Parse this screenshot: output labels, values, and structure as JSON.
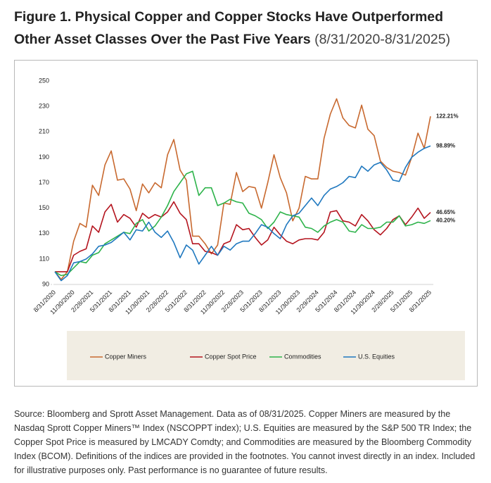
{
  "chart_data": {
    "type": "line",
    "title": "Figure 1. Physical Copper and Copper Stocks Have Outperformed Other Asset Classes Over the Past Five Years",
    "subtitle": "(8/31/2020-8/31/2025)",
    "footnote": "Source: Bloomberg and Sprott Asset Management. Data as of 08/31/2025. Copper Miners are measured by the Nasdaq Sprott Copper Miners™ Index (NSCOPPT index); U.S. Equities are measured by the S&P 500 TR Index; the Copper Spot Price is measured by LMCADY Comdty; and Commodities are measured by the Bloomberg Commodity Index (BCOM). Definitions of the indices are provided in the footnotes. You cannot invest directly in an index. Included for illustrative purposes only. Past performance is no guarantee of future results.",
    "categories": [
      "8/31/2020",
      null,
      null,
      "11/30/2020",
      null,
      null,
      "2/28/2021",
      null,
      null,
      "5/31/2021",
      null,
      null,
      "8/31/2021",
      null,
      null,
      "11/30/2021",
      null,
      null,
      "2/28/2022",
      null,
      null,
      "5/31/2022",
      null,
      null,
      "8/31/2022",
      null,
      null,
      "11/30/2022",
      null,
      null,
      "2/28/2023",
      null,
      null,
      "5/31/2023",
      null,
      null,
      "8/31/2023",
      null,
      null,
      "11/30/2023",
      null,
      null,
      "2/29/2024",
      null,
      null,
      "5/31/2024",
      null,
      null,
      "8/31/2024",
      null,
      null,
      "11/30/2024",
      null,
      null,
      "2/28/2025",
      null,
      null,
      "5/31/2025",
      null,
      null,
      "8/31/2025"
    ],
    "series": [
      {
        "name": "Copper Miners",
        "color": "#c8692f",
        "end_label": "122.21%",
        "values": [
          100,
          94,
          100,
          124,
          138,
          135,
          168,
          160,
          184,
          195,
          172,
          173,
          165,
          148,
          169,
          162,
          170,
          166,
          192,
          204,
          180,
          172,
          128,
          128,
          122,
          114,
          121,
          154,
          153,
          178,
          163,
          167,
          166,
          150,
          170,
          192,
          174,
          162,
          140,
          150,
          175,
          173,
          173,
          205,
          224,
          236,
          221,
          215,
          213,
          231,
          212,
          207,
          187,
          182,
          179,
          178,
          176,
          190,
          209,
          197,
          222.21
        ]
      },
      {
        "name": "Copper Spot Price",
        "color": "#b4141e",
        "end_label": "46.65%",
        "values": [
          100,
          100,
          100,
          113,
          116,
          118,
          136,
          131,
          147,
          153,
          139,
          145,
          142,
          135,
          146,
          142,
          145,
          143,
          147,
          155,
          146,
          141,
          122,
          122,
          116,
          115,
          113,
          122,
          124,
          137,
          133,
          134,
          127,
          121,
          125,
          135,
          129,
          124,
          122,
          125,
          126,
          126,
          125,
          131,
          147,
          148,
          140,
          139,
          136,
          145,
          140,
          133,
          129,
          134,
          141,
          144,
          137,
          143,
          150,
          142,
          146.65
        ]
      },
      {
        "name": "Commodities",
        "color": "#2db34a",
        "end_label": "40.20%",
        "values": [
          100,
          97,
          98,
          103,
          108,
          107,
          113,
          115,
          122,
          125,
          128,
          131,
          130,
          138,
          141,
          132,
          136,
          143,
          152,
          163,
          170,
          177,
          179,
          160,
          166,
          166,
          152,
          154,
          157,
          155,
          154,
          146,
          144,
          141,
          134,
          139,
          147,
          145,
          144,
          143,
          135,
          134,
          131,
          136,
          139,
          141,
          139,
          132,
          131,
          137,
          134,
          134,
          135,
          139,
          139,
          144,
          136,
          137,
          139,
          138,
          140.2
        ]
      },
      {
        "name": "U.S. Equities",
        "color": "#1f78bf",
        "end_label": "98.89%",
        "values": [
          100,
          93,
          97,
          107,
          108,
          110,
          114,
          120,
          121,
          123,
          127,
          131,
          125,
          133,
          132,
          139,
          131,
          127,
          132,
          123,
          111,
          121,
          117,
          106,
          113,
          120,
          113,
          120,
          117,
          122,
          124,
          124,
          130,
          137,
          135,
          130,
          126,
          137,
          144,
          146,
          152,
          158,
          152,
          160,
          165,
          167,
          170,
          175,
          174,
          183,
          179,
          184,
          186,
          180,
          172,
          171,
          182,
          190,
          194,
          197,
          198.89
        ]
      }
    ],
    "ylim": [
      90,
      250
    ],
    "yticks": [
      90,
      110,
      130,
      150,
      170,
      190,
      210,
      230,
      250
    ],
    "grid": false,
    "legend": "bottom"
  }
}
